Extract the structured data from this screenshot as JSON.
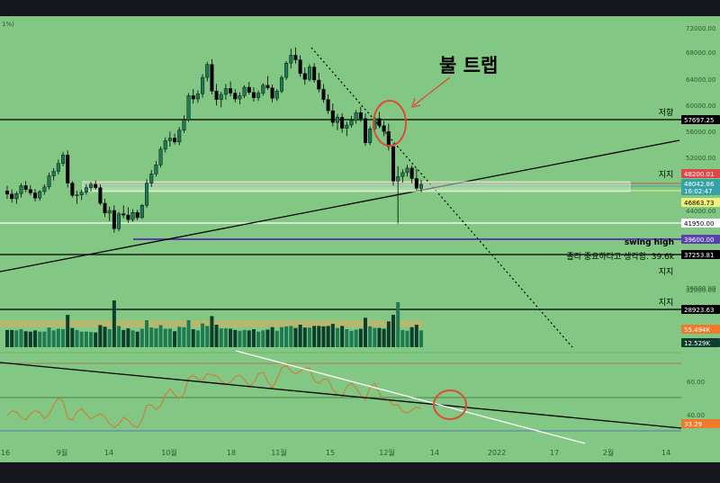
{
  "chart_data": {
    "type": "candlestick",
    "top_left_label": "1%)",
    "annotation_title": "불 트랩",
    "price_axis": {
      "ticks": [
        "72000.00",
        "68000.00",
        "64000.00",
        "60000.00",
        "56000.00",
        "52000.00",
        "44000.00",
        "36000.00",
        "32000.00"
      ],
      "tick_values": [
        72000,
        68000,
        64000,
        60000,
        56000,
        52000,
        44000,
        36000,
        32000
      ],
      "range": [
        26000,
        73500
      ]
    },
    "levels": [
      {
        "label": "저항",
        "value": 57697.25,
        "badge": "57697.25",
        "color": "#000000"
      },
      {
        "label": "지지",
        "value": 48200.01,
        "badge": "48200.01",
        "color": "#e04848"
      },
      {
        "label": "",
        "value": 48042.86,
        "badge": "48042.86",
        "sub": "16:02:47",
        "color": "#35a3a6"
      },
      {
        "label": "",
        "value": 46863.73,
        "badge": "46863.73",
        "color": "#f1f179"
      },
      {
        "label": "swing high",
        "value": 41950.0,
        "badge": "41950.00",
        "color": "#ffffff"
      },
      {
        "label": "졸라 중요하다고 생각함. 39.6k",
        "value": 39600.0,
        "badge": "39600.00",
        "color": "#5a3fb0"
      },
      {
        "label": "지지",
        "value": 37253.81,
        "badge": "37253.81",
        "color": "#000000"
      },
      {
        "label": "지지",
        "value": 28923.63,
        "badge": "28923.63",
        "color": "#000000"
      }
    ],
    "volume": {
      "badge_ma": "55.494K",
      "badge_vol": "12.529K"
    },
    "rsi": {
      "ticks": [
        "60.00",
        "40.00"
      ],
      "tick_values": [
        60,
        40
      ],
      "badge": "33.29",
      "range": [
        25,
        80
      ]
    },
    "x_axis": {
      "labels": [
        "16",
        "9월",
        "14",
        "10월",
        "18",
        "11월",
        "15",
        "12월",
        "14",
        "2022",
        "17",
        "2월",
        "14"
      ]
    },
    "candles": [
      [
        47000,
        47800,
        45800,
        46500
      ],
      [
        46500,
        47200,
        45200,
        45800
      ],
      [
        45800,
        46900,
        45000,
        46600
      ],
      [
        46600,
        48200,
        46000,
        47800
      ],
      [
        47800,
        48500,
        46800,
        47200
      ],
      [
        47200,
        47900,
        46300,
        46700
      ],
      [
        46700,
        47300,
        45400,
        45900
      ],
      [
        45900,
        47100,
        45500,
        46900
      ],
      [
        46900,
        48000,
        46400,
        47600
      ],
      [
        47600,
        49800,
        47200,
        49300
      ],
      [
        49300,
        50500,
        48600,
        50000
      ],
      [
        50000,
        51800,
        49500,
        51200
      ],
      [
        51200,
        53000,
        50800,
        52500
      ],
      [
        52500,
        53200,
        47500,
        48200
      ],
      [
        48200,
        48500,
        46000,
        46300
      ],
      [
        46300,
        47000,
        45000,
        46400
      ],
      [
        46400,
        47200,
        45600,
        46800
      ],
      [
        46800,
        48000,
        46400,
        47500
      ],
      [
        47500,
        48400,
        46900,
        48000
      ],
      [
        48000,
        48600,
        47200,
        47500
      ],
      [
        47500,
        48000,
        44800,
        45100
      ],
      [
        45100,
        45800,
        43000,
        43600
      ],
      [
        43600,
        44600,
        42400,
        44000
      ],
      [
        44000,
        44800,
        40600,
        41200
      ],
      [
        41200,
        43800,
        40800,
        43500
      ],
      [
        43500,
        44800,
        42800,
        43300
      ],
      [
        43300,
        44500,
        42100,
        42600
      ],
      [
        42600,
        44200,
        42300,
        43700
      ],
      [
        43700,
        44100,
        42500,
        42900
      ],
      [
        42900,
        45000,
        42700,
        44800
      ],
      [
        44800,
        48800,
        44400,
        48200
      ],
      [
        48200,
        50200,
        47600,
        49600
      ],
      [
        49600,
        51600,
        49200,
        51000
      ],
      [
        51000,
        53800,
        50600,
        53400
      ],
      [
        53400,
        55200,
        52900,
        54700
      ],
      [
        54700,
        56100,
        53800,
        55100
      ],
      [
        55100,
        55800,
        54100,
        54500
      ],
      [
        54500,
        56800,
        54000,
        56300
      ],
      [
        56300,
        58600,
        55900,
        57900
      ],
      [
        57900,
        62000,
        57600,
        61600
      ],
      [
        61600,
        62600,
        60400,
        61100
      ],
      [
        61100,
        62400,
        60500,
        61900
      ],
      [
        61900,
        64900,
        61300,
        64400
      ],
      [
        64400,
        66800,
        63800,
        66400
      ],
      [
        66400,
        67200,
        61800,
        62300
      ],
      [
        62300,
        63400,
        60100,
        61000
      ],
      [
        61000,
        62200,
        59800,
        61800
      ],
      [
        61800,
        63400,
        61000,
        62700
      ],
      [
        62700,
        63800,
        61500,
        62000
      ],
      [
        62000,
        62600,
        60600,
        61100
      ],
      [
        61100,
        62100,
        60300,
        61600
      ],
      [
        61600,
        63200,
        61200,
        62900
      ],
      [
        62900,
        63700,
        61800,
        62100
      ],
      [
        62100,
        62900,
        60700,
        61300
      ],
      [
        61300,
        62400,
        60800,
        62000
      ],
      [
        62000,
        63500,
        61600,
        63200
      ],
      [
        63200,
        64600,
        62500,
        62800
      ],
      [
        62800,
        63300,
        60600,
        61200
      ],
      [
        61200,
        62600,
        60800,
        62300
      ],
      [
        62300,
        64700,
        62000,
        64400
      ],
      [
        64400,
        66900,
        64000,
        66600
      ],
      [
        66600,
        68800,
        65800,
        67800
      ],
      [
        67800,
        69000,
        66500,
        67100
      ],
      [
        67100,
        67800,
        64500,
        65000
      ],
      [
        65000,
        65900,
        63300,
        64100
      ],
      [
        64100,
        66400,
        63800,
        66000
      ],
      [
        66000,
        66600,
        63600,
        64000
      ],
      [
        64000,
        65100,
        62100,
        62600
      ],
      [
        62600,
        63400,
        60500,
        61000
      ],
      [
        61000,
        61800,
        58800,
        59300
      ],
      [
        59300,
        60400,
        56900,
        57500
      ],
      [
        57500,
        58800,
        56300,
        58300
      ],
      [
        58300,
        58900,
        55900,
        56600
      ],
      [
        56600,
        57600,
        55400,
        57100
      ],
      [
        57100,
        58500,
        56700,
        57800
      ],
      [
        57800,
        59400,
        57300,
        59000
      ],
      [
        59000,
        59900,
        57600,
        58100
      ],
      [
        58100,
        58900,
        53900,
        54400
      ],
      [
        54400,
        56900,
        54000,
        56500
      ],
      [
        56500,
        58600,
        56100,
        58100
      ],
      [
        58100,
        59100,
        56600,
        57000
      ],
      [
        57000,
        57700,
        55400,
        56100
      ],
      [
        56100,
        57300,
        53200,
        53800
      ],
      [
        53800,
        54300,
        47800,
        48500
      ],
      [
        48500,
        50800,
        42000,
        49200
      ],
      [
        49200,
        50300,
        48300,
        49800
      ],
      [
        49800,
        51000,
        49200,
        50500
      ],
      [
        50500,
        50900,
        48200,
        48900
      ],
      [
        48900,
        50400,
        47100,
        47400
      ],
      [
        47400,
        48700,
        46800,
        48000
      ]
    ]
  }
}
